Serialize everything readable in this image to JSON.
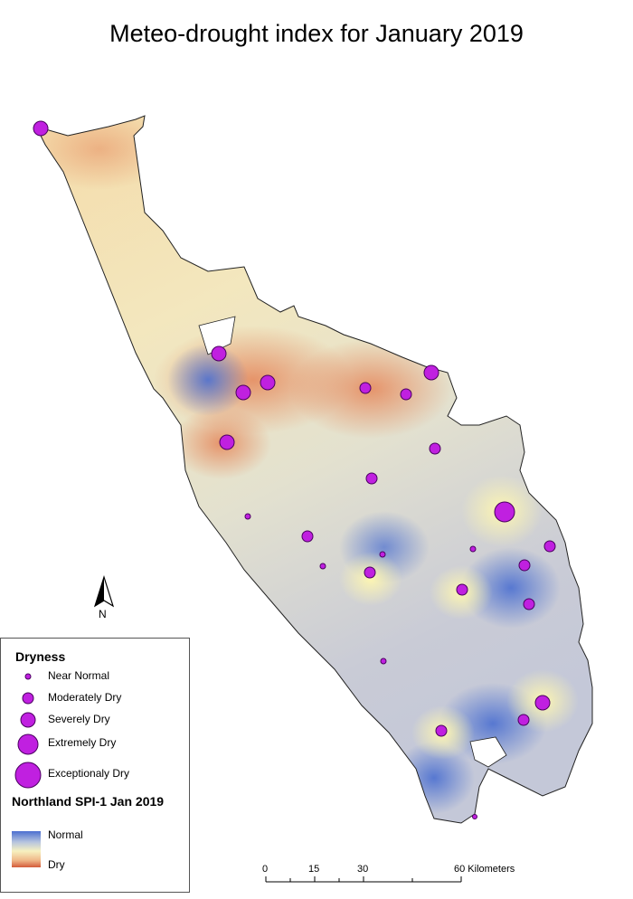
{
  "title": "Meteo-drought index for January 2019",
  "legend": {
    "title": "Dryness",
    "classes": [
      {
        "label": "Near Normal",
        "radius": 3
      },
      {
        "label": "Moderately Dry",
        "radius": 6
      },
      {
        "label": "Severely Dry",
        "radius": 8
      },
      {
        "label": "Extremely Dry",
        "radius": 11
      },
      {
        "label": "Exceptionaly Dry",
        "radius": 14
      }
    ],
    "ramp_title": "Northland SPI-1 Jan 2019",
    "ramp_high": "Normal",
    "ramp_low": "Dry"
  },
  "scale_bar": {
    "labels": [
      "0",
      "15",
      "30",
      "60 Kilometers"
    ]
  },
  "north_arrow": {
    "label": "N"
  },
  "colors": {
    "marker_fill": "#c020e0",
    "normal": "#4b6fd0",
    "dry": "#d35b3a",
    "neutral": "#f7f1c0"
  },
  "stations": [
    {
      "cls": 2
    },
    {
      "cls": 2
    },
    {
      "cls": 2
    },
    {
      "cls": 2
    },
    {
      "cls": 2
    },
    {
      "cls": 1
    },
    {
      "cls": 1
    },
    {
      "cls": 2
    },
    {
      "cls": 1
    },
    {
      "cls": 1
    },
    {
      "cls": 3
    },
    {
      "cls": 1
    },
    {
      "cls": 0
    },
    {
      "cls": 1
    },
    {
      "cls": 1
    },
    {
      "cls": 0
    },
    {
      "cls": 0
    },
    {
      "cls": 1
    },
    {
      "cls": 1
    },
    {
      "cls": 1
    },
    {
      "cls": 0
    },
    {
      "cls": 2
    },
    {
      "cls": 1
    },
    {
      "cls": 1
    },
    {
      "cls": 0
    }
  ]
}
